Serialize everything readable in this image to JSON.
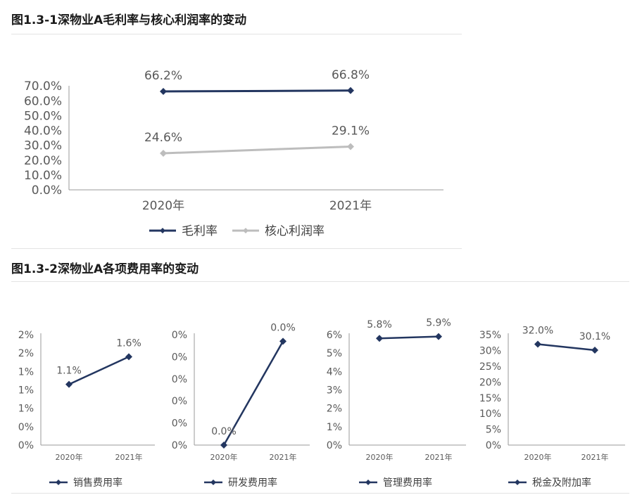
{
  "figure1": {
    "title": "图1.3-1深物业A毛利率与核心利润率的变动",
    "chart_data": {
      "type": "line",
      "categories": [
        "2020年",
        "2021年"
      ],
      "ylim": [
        0,
        70
      ],
      "yticks": [
        "0.0%",
        "10.0%",
        "20.0%",
        "30.0%",
        "40.0%",
        "50.0%",
        "60.0%",
        "70.0%"
      ],
      "legend_position": "bottom",
      "grid": false,
      "series": [
        {
          "name": "毛利率",
          "values": [
            66.2,
            66.8
          ],
          "labels": [
            "66.2%",
            "66.8%"
          ],
          "color": "#233660"
        },
        {
          "name": "核心利润率",
          "values": [
            24.6,
            29.1
          ],
          "labels": [
            "24.6%",
            "29.1%"
          ],
          "color": "#bdbdbd"
        }
      ]
    }
  },
  "figure2": {
    "title": "图1.3-2深物业A各项费用率的变动",
    "chart_data": [
      {
        "type": "line",
        "categories": [
          "2020年",
          "2021年"
        ],
        "ylim": [
          0,
          2
        ],
        "yticks": [
          "0%",
          "0%",
          "1%",
          "1%",
          "1%",
          "2%",
          "2%"
        ],
        "legend_position": "bottom",
        "series": [
          {
            "name": "销售费用率",
            "values": [
              1.1,
              1.6
            ],
            "labels": [
              "1.1%",
              "1.6%"
            ],
            "color": "#233660"
          }
        ]
      },
      {
        "type": "line",
        "categories": [
          "2020年",
          "2021年"
        ],
        "ylim": [
          0,
          0.05
        ],
        "yticks": [
          "0%",
          "0%",
          "0%",
          "0%",
          "0%",
          "0%"
        ],
        "legend_position": "bottom",
        "series": [
          {
            "name": "研发费用率",
            "values": [
              0.0,
              0.047
            ],
            "labels": [
              "0.0%",
              "0.0%"
            ],
            "color": "#233660"
          }
        ]
      },
      {
        "type": "line",
        "categories": [
          "2020年",
          "2021年"
        ],
        "ylim": [
          0,
          6
        ],
        "yticks": [
          "0%",
          "1%",
          "2%",
          "3%",
          "4%",
          "5%",
          "6%"
        ],
        "legend_position": "bottom",
        "series": [
          {
            "name": "管理费用率",
            "values": [
              5.8,
              5.9
            ],
            "labels": [
              "5.8%",
              "5.9%"
            ],
            "color": "#233660"
          }
        ]
      },
      {
        "type": "line",
        "categories": [
          "2020年",
          "2021年"
        ],
        "ylim": [
          0,
          35
        ],
        "yticks": [
          "0%",
          "5%",
          "10%",
          "15%",
          "20%",
          "25%",
          "30%",
          "35%"
        ],
        "legend_position": "bottom",
        "series": [
          {
            "name": "税金及附加率",
            "values": [
              32.0,
              30.1
            ],
            "labels": [
              "32.0%",
              "30.1%"
            ],
            "color": "#233660"
          }
        ]
      }
    ]
  }
}
